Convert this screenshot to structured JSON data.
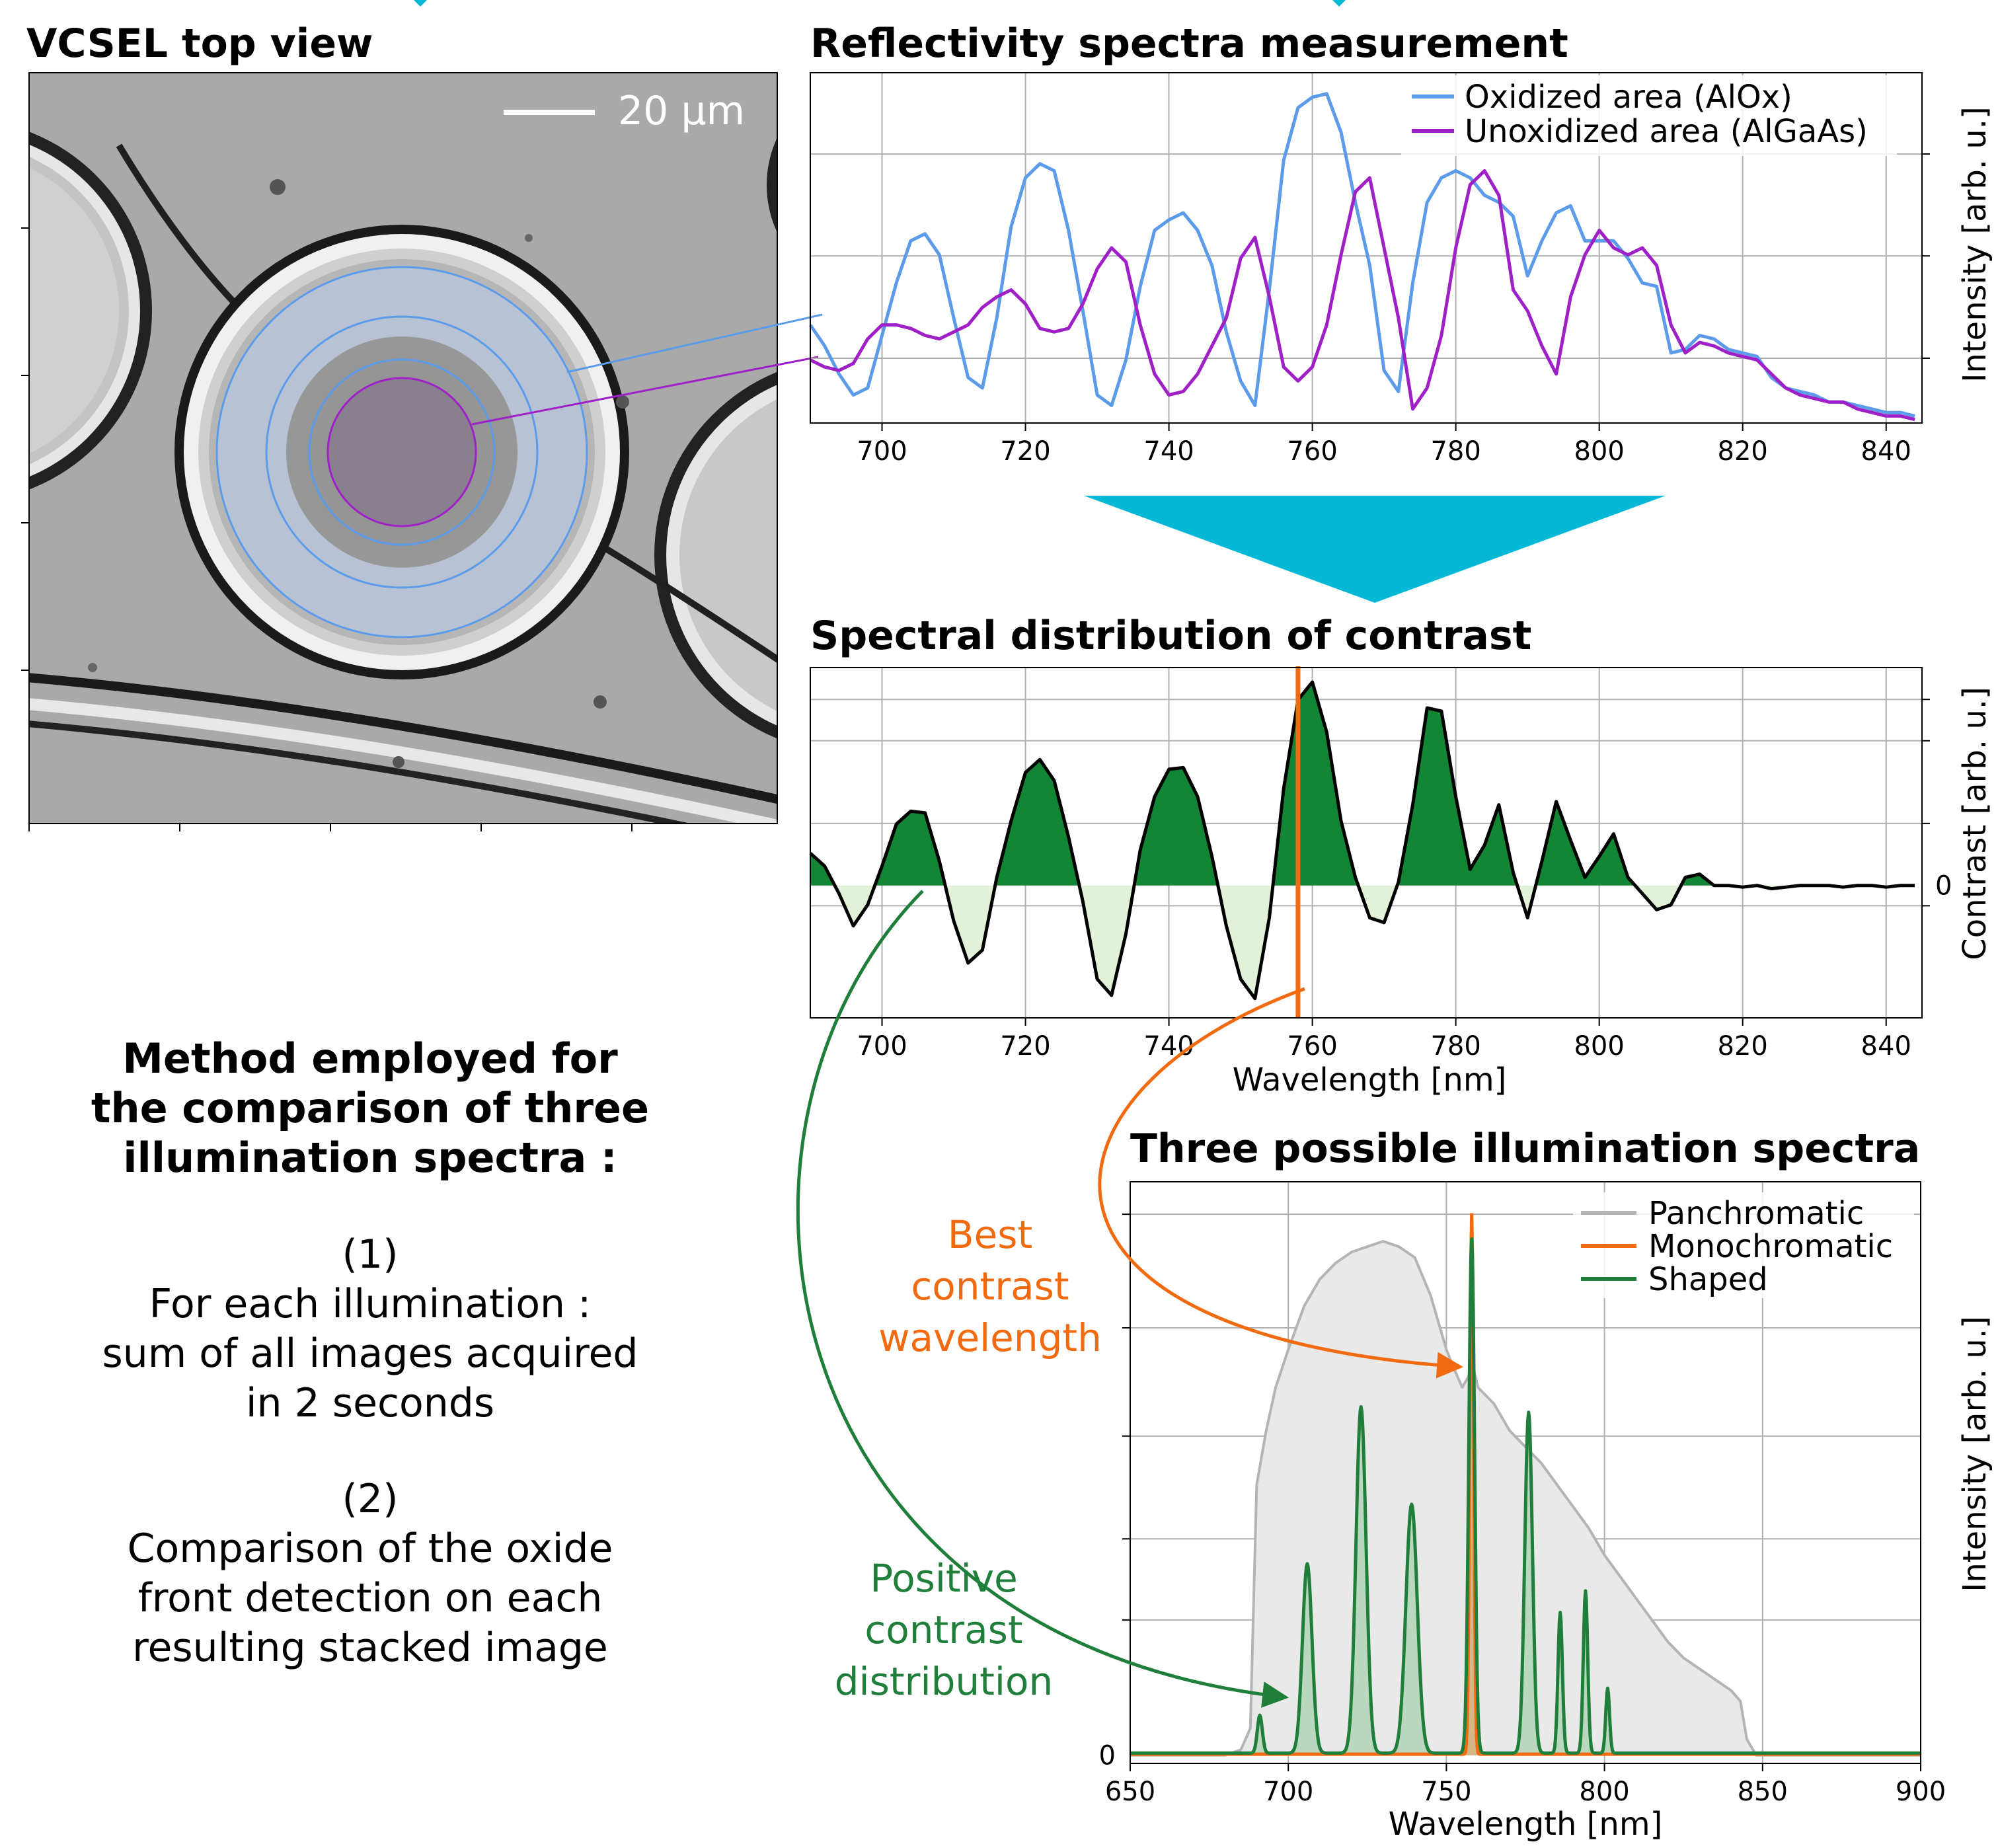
{
  "palette": {
    "oxidized": "#5B9BEA",
    "unoxidized": "#A020C8",
    "contrast_positive": "#138636",
    "contrast_negative": "#E2F2D8",
    "best_contrast": "#F26A10",
    "panchromatic": "#B4B4B4",
    "panchromatic_fill": "#E9E9E9",
    "shaped": "#1E7E3A",
    "shaped_fill": "#B9D8BE",
    "arrow_cyan": "#04B8D6",
    "grid": "#B0B0B0"
  },
  "micrograph": {
    "title": "VCSEL top view",
    "scale_bar_label": "20 µm"
  },
  "method": {
    "heading": [
      "Method employed for",
      "the comparison of three",
      "illumination spectra :"
    ],
    "step1_number": "(1)",
    "step1_text": [
      "For each illumination :",
      "sum of all images acquired",
      "in 2 seconds"
    ],
    "step2_number": "(2)",
    "step2_text": [
      "Comparison of the oxide",
      "front detection on each",
      "resulting stacked image"
    ]
  },
  "annotations": {
    "best_contrast": [
      "Best",
      "contrast",
      "wavelength"
    ],
    "positive_contrast": [
      "Positive",
      "contrast",
      "distribution"
    ]
  },
  "chart_data": [
    {
      "id": "reflectivity",
      "type": "line",
      "title": "Reflectivity spectra measurement",
      "xlabel": "",
      "ylabel": "Intensity [arb. u.]",
      "xlim": [
        690,
        845
      ],
      "ylim": [
        0,
        1
      ],
      "xticks": [
        700,
        720,
        740,
        760,
        780,
        800,
        820,
        840
      ],
      "grid": true,
      "legend": "top-right",
      "series": [
        {
          "name": "Oxidized area (AlOx)",
          "x": [
            690,
            692,
            694,
            696,
            698,
            700,
            702,
            704,
            706,
            708,
            710,
            712,
            714,
            716,
            718,
            720,
            722,
            724,
            726,
            728,
            730,
            732,
            734,
            736,
            738,
            740,
            742,
            744,
            746,
            748,
            750,
            752,
            754,
            756,
            758,
            760,
            762,
            764,
            766,
            768,
            770,
            772,
            774,
            776,
            778,
            780,
            782,
            784,
            786,
            788,
            790,
            792,
            794,
            796,
            798,
            800,
            802,
            804,
            806,
            808,
            810,
            812,
            814,
            816,
            818,
            820,
            822,
            824,
            826,
            828,
            830,
            832,
            834,
            836,
            838,
            840,
            842,
            844
          ],
          "y": [
            0.28,
            0.22,
            0.14,
            0.08,
            0.1,
            0.25,
            0.4,
            0.52,
            0.54,
            0.48,
            0.3,
            0.13,
            0.1,
            0.3,
            0.56,
            0.7,
            0.74,
            0.72,
            0.55,
            0.32,
            0.08,
            0.05,
            0.18,
            0.39,
            0.55,
            0.58,
            0.6,
            0.55,
            0.45,
            0.26,
            0.12,
            0.05,
            0.38,
            0.75,
            0.9,
            0.93,
            0.94,
            0.83,
            0.63,
            0.45,
            0.15,
            0.09,
            0.4,
            0.63,
            0.7,
            0.72,
            0.7,
            0.65,
            0.63,
            0.59,
            0.42,
            0.52,
            0.6,
            0.62,
            0.52,
            0.52,
            0.52,
            0.47,
            0.4,
            0.39,
            0.2,
            0.21,
            0.25,
            0.24,
            0.21,
            0.2,
            0.19,
            0.13,
            0.1,
            0.09,
            0.08,
            0.06,
            0.06,
            0.05,
            0.04,
            0.03,
            0.03,
            0.02
          ]
        },
        {
          "name": "Unoxidized area (AlGaAs)",
          "x": [
            690,
            692,
            694,
            696,
            698,
            700,
            702,
            704,
            706,
            708,
            710,
            712,
            714,
            716,
            718,
            720,
            722,
            724,
            726,
            728,
            730,
            732,
            734,
            736,
            738,
            740,
            742,
            744,
            746,
            748,
            750,
            752,
            754,
            756,
            758,
            760,
            762,
            764,
            766,
            768,
            770,
            772,
            774,
            776,
            778,
            780,
            782,
            784,
            786,
            788,
            790,
            792,
            794,
            796,
            798,
            800,
            802,
            804,
            806,
            808,
            810,
            812,
            814,
            816,
            818,
            820,
            822,
            824,
            826,
            828,
            830,
            832,
            834,
            836,
            838,
            840,
            842,
            844
          ],
          "y": [
            0.18,
            0.16,
            0.15,
            0.17,
            0.24,
            0.28,
            0.28,
            0.27,
            0.25,
            0.24,
            0.26,
            0.28,
            0.33,
            0.36,
            0.38,
            0.34,
            0.27,
            0.26,
            0.27,
            0.34,
            0.44,
            0.5,
            0.46,
            0.28,
            0.14,
            0.08,
            0.09,
            0.14,
            0.22,
            0.3,
            0.47,
            0.53,
            0.36,
            0.16,
            0.12,
            0.16,
            0.28,
            0.48,
            0.66,
            0.7,
            0.5,
            0.3,
            0.04,
            0.1,
            0.25,
            0.5,
            0.68,
            0.72,
            0.65,
            0.38,
            0.32,
            0.22,
            0.14,
            0.36,
            0.48,
            0.55,
            0.5,
            0.48,
            0.5,
            0.45,
            0.28,
            0.2,
            0.23,
            0.22,
            0.2,
            0.19,
            0.18,
            0.14,
            0.1,
            0.08,
            0.07,
            0.06,
            0.06,
            0.04,
            0.03,
            0.02,
            0.02,
            0.01
          ]
        }
      ]
    },
    {
      "id": "contrast",
      "type": "area",
      "title": "Spectral distribution of contrast",
      "xlabel": "Wavelength [nm]",
      "ylabel": "Contrast [arb. u.]",
      "xlim": [
        690,
        845
      ],
      "ylim": [
        -0.82,
        1.35
      ],
      "xticks": [
        700,
        720,
        740,
        760,
        780,
        800,
        820,
        840
      ],
      "yticks": [
        0
      ],
      "grid": true,
      "best_contrast_wavelength": 758,
      "series": [
        {
          "name": "",
          "x": [
            690,
            692,
            694,
            696,
            698,
            700,
            702,
            704,
            706,
            708,
            710,
            712,
            714,
            716,
            718,
            720,
            722,
            724,
            726,
            728,
            730,
            732,
            734,
            736,
            738,
            740,
            742,
            744,
            746,
            748,
            750,
            752,
            754,
            756,
            758,
            760,
            762,
            764,
            766,
            768,
            770,
            772,
            774,
            776,
            778,
            780,
            782,
            784,
            786,
            788,
            790,
            792,
            794,
            796,
            798,
            800,
            802,
            804,
            806,
            808,
            810,
            812,
            814,
            816,
            818,
            820,
            822,
            824,
            826,
            828,
            830,
            832,
            834,
            836,
            838,
            840,
            842,
            844
          ],
          "y": [
            0.2,
            0.12,
            -0.05,
            -0.25,
            -0.12,
            0.12,
            0.38,
            0.46,
            0.45,
            0.15,
            -0.22,
            -0.48,
            -0.4,
            0.05,
            0.4,
            0.7,
            0.78,
            0.65,
            0.3,
            -0.1,
            -0.58,
            -0.68,
            -0.3,
            0.22,
            0.55,
            0.72,
            0.73,
            0.55,
            0.18,
            -0.25,
            -0.58,
            -0.7,
            -0.2,
            0.6,
            1.15,
            1.26,
            0.95,
            0.4,
            0.05,
            -0.2,
            -0.23,
            0.02,
            0.5,
            1.1,
            1.08,
            0.55,
            0.1,
            0.25,
            0.5,
            0.08,
            -0.2,
            0.15,
            0.52,
            0.28,
            0.05,
            0.18,
            0.32,
            0.05,
            -0.05,
            -0.15,
            -0.12,
            0.05,
            0.07,
            0.0,
            0.0,
            -0.01,
            0.0,
            -0.02,
            -0.01,
            0.0,
            0.0,
            0.0,
            -0.01,
            0.0,
            0.0,
            -0.01,
            0.0,
            0.0
          ]
        }
      ]
    },
    {
      "id": "illumination",
      "type": "area",
      "title": "Three possible illumination spectra",
      "xlabel": "Wavelength [nm]",
      "ylabel": "Intensity [arb. u.]",
      "xlim": [
        650,
        900
      ],
      "ylim": [
        -0.015,
        1.06
      ],
      "xticks": [
        650,
        700,
        750,
        800,
        850,
        900
      ],
      "yticks": [
        0
      ],
      "grid": true,
      "legend": "top-right",
      "series": [
        {
          "name": "Panchromatic",
          "x": [
            650,
            680,
            685,
            688,
            690,
            693,
            696,
            700,
            705,
            710,
            715,
            720,
            725,
            730,
            735,
            740,
            745,
            750,
            752,
            755,
            757,
            758,
            760,
            765,
            770,
            775,
            780,
            785,
            790,
            795,
            800,
            805,
            810,
            815,
            820,
            825,
            830,
            835,
            840,
            843,
            845,
            848,
            850,
            900
          ],
          "y": [
            0,
            0,
            0.01,
            0.05,
            0.5,
            0.6,
            0.68,
            0.75,
            0.83,
            0.88,
            0.91,
            0.93,
            0.94,
            0.95,
            0.94,
            0.92,
            0.85,
            0.75,
            0.72,
            0.68,
            0.7,
            0.73,
            0.68,
            0.65,
            0.6,
            0.57,
            0.54,
            0.5,
            0.46,
            0.42,
            0.37,
            0.33,
            0.29,
            0.25,
            0.21,
            0.18,
            0.16,
            0.14,
            0.12,
            0.1,
            0.03,
            0.0,
            0,
            0
          ]
        },
        {
          "name": "Monochromatic",
          "type": "peaks",
          "baseline": 0.002,
          "peaks": [
            [
              758,
              1.0,
              0.6
            ]
          ]
        },
        {
          "name": "Shaped",
          "type": "peaks",
          "baseline": 0.004,
          "peaks": [
            [
              691,
              0.07,
              0.8
            ],
            [
              706,
              0.35,
              1.5
            ],
            [
              723,
              0.64,
              1.6
            ],
            [
              739,
              0.46,
              1.8
            ],
            [
              758,
              0.95,
              0.9
            ],
            [
              776,
              0.63,
              1.2
            ],
            [
              786,
              0.26,
              0.7
            ],
            [
              794,
              0.3,
              0.7
            ],
            [
              801,
              0.12,
              0.6
            ]
          ]
        }
      ]
    }
  ]
}
